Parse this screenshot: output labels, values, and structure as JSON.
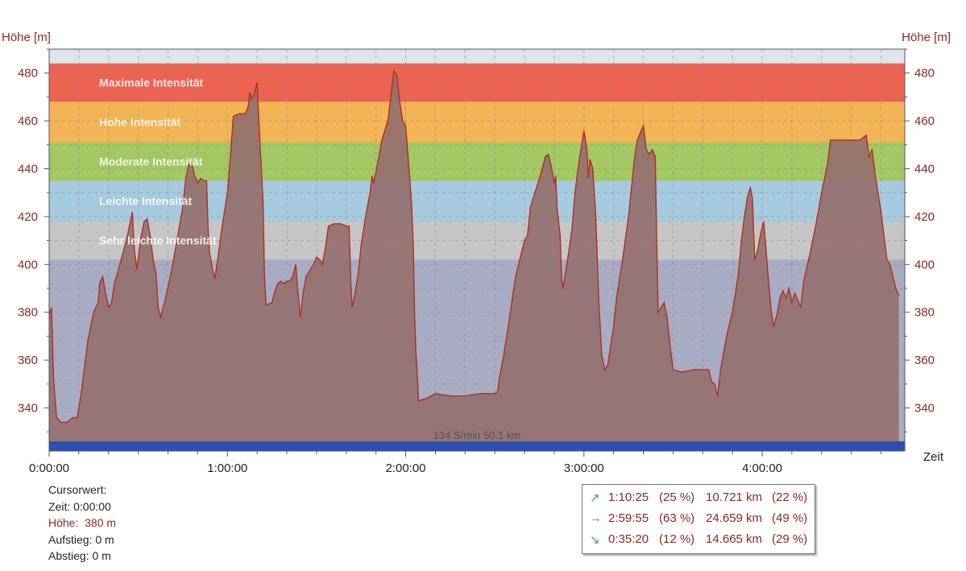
{
  "chart_data": {
    "type": "area",
    "ylabel_left": "Höhe [m]",
    "ylabel_right": "Höhe [m]",
    "xlabel": "Zeit",
    "ylim": [
      322,
      490
    ],
    "xlim_minutes": [
      0,
      288
    ],
    "y_ticks": [
      340,
      360,
      380,
      400,
      420,
      440,
      460,
      480
    ],
    "x_ticks": [
      {
        "minutes": 0,
        "label": "0:00:00"
      },
      {
        "minutes": 60,
        "label": "1:00:00"
      },
      {
        "minutes": 120,
        "label": "2:00:00"
      },
      {
        "minutes": 180,
        "label": "3:00:00"
      },
      {
        "minutes": 240,
        "label": "4:00:00"
      }
    ],
    "zones": [
      {
        "label": "Maximale Intensität",
        "y0": 468,
        "y1": 484,
        "color": "#ec6352"
      },
      {
        "label": "Hohe Intensität",
        "y0": 451,
        "y1": 468,
        "color": "#f2b455"
      },
      {
        "label": "Moderate Intensität",
        "y0": 435,
        "y1": 451,
        "color": "#a3c762"
      },
      {
        "label": "Leichte Intensität",
        "y0": 418,
        "y1": 435,
        "color": "#a5c9df"
      },
      {
        "label": "Sehr leichte Intensität",
        "y0": 402,
        "y1": 418,
        "color": "#c5c5c5"
      }
    ],
    "annotation": "134 S/min 50.1 km",
    "series": [
      {
        "fill": "#94706f",
        "line": "#b03020",
        "points": [
          [
            0,
            379
          ],
          [
            0.8,
            382
          ],
          [
            1.5,
            352
          ],
          [
            2.5,
            336
          ],
          [
            4,
            334
          ],
          [
            6,
            334
          ],
          [
            8,
            336
          ],
          [
            9.5,
            336
          ],
          [
            11,
            348
          ],
          [
            13,
            368
          ],
          [
            15,
            380
          ],
          [
            16.5,
            384
          ],
          [
            17,
            392
          ],
          [
            18,
            395
          ],
          [
            19,
            388
          ],
          [
            20,
            382
          ],
          [
            21,
            384
          ],
          [
            22,
            392
          ],
          [
            24,
            401
          ],
          [
            26,
            410
          ],
          [
            27,
            416
          ],
          [
            28,
            422
          ],
          [
            28.7,
            406
          ],
          [
            29.5,
            398
          ],
          [
            31,
            412
          ],
          [
            32,
            418
          ],
          [
            33,
            419
          ],
          [
            34,
            412
          ],
          [
            35,
            402
          ],
          [
            36,
            396
          ],
          [
            36.7,
            382
          ],
          [
            37.5,
            378
          ],
          [
            39,
            385
          ],
          [
            41,
            396
          ],
          [
            43,
            410
          ],
          [
            45,
            424
          ],
          [
            46,
            436
          ],
          [
            47,
            442
          ],
          [
            48,
            442
          ],
          [
            49,
            437
          ],
          [
            50,
            434
          ],
          [
            51,
            436
          ],
          [
            52,
            435
          ],
          [
            53,
            435
          ],
          [
            53.5,
            415
          ],
          [
            54,
            405
          ],
          [
            55,
            398
          ],
          [
            55.8,
            394
          ],
          [
            56.5,
            400
          ],
          [
            58,
            414
          ],
          [
            60,
            430
          ],
          [
            61,
            445
          ],
          [
            62,
            462
          ],
          [
            64,
            463
          ],
          [
            66,
            463
          ],
          [
            67,
            466
          ],
          [
            67.5,
            472
          ],
          [
            68,
            469
          ],
          [
            69,
            471
          ],
          [
            70,
            476
          ],
          [
            71,
            450
          ],
          [
            72,
            426
          ],
          [
            72.5,
            395
          ],
          [
            73,
            383
          ],
          [
            75,
            384
          ],
          [
            76,
            389
          ],
          [
            77,
            392
          ],
          [
            78,
            393
          ],
          [
            79,
            392
          ],
          [
            80,
            393
          ],
          [
            81,
            393
          ],
          [
            82,
            395
          ],
          [
            83,
            400
          ],
          [
            83.5,
            392
          ],
          [
            84.5,
            378
          ],
          [
            85.5,
            388
          ],
          [
            86.5,
            395
          ],
          [
            88,
            398
          ],
          [
            89,
            400
          ],
          [
            90,
            403
          ],
          [
            91,
            402
          ],
          [
            92,
            400
          ],
          [
            93,
            407
          ],
          [
            94,
            416
          ],
          [
            96,
            417
          ],
          [
            98,
            417
          ],
          [
            100,
            416
          ],
          [
            101,
            416
          ],
          [
            101.5,
            394
          ],
          [
            102,
            382
          ],
          [
            103,
            388
          ],
          [
            104,
            396
          ],
          [
            105,
            408
          ],
          [
            106.5,
            420
          ],
          [
            108,
            430
          ],
          [
            108.7,
            437
          ],
          [
            109.3,
            434
          ],
          [
            110.5,
            442
          ],
          [
            112,
            452
          ],
          [
            114,
            460
          ],
          [
            115,
            470
          ],
          [
            116,
            481
          ],
          [
            117,
            479
          ],
          [
            118,
            468
          ],
          [
            119,
            460
          ],
          [
            120,
            458
          ],
          [
            121,
            442
          ],
          [
            122,
            425
          ],
          [
            122.6,
            407
          ],
          [
            123,
            378
          ],
          [
            123.5,
            362
          ],
          [
            124,
            352
          ],
          [
            124.3,
            343
          ],
          [
            127,
            344
          ],
          [
            130,
            346
          ],
          [
            135,
            345
          ],
          [
            140,
            345
          ],
          [
            145,
            346
          ],
          [
            148,
            346
          ],
          [
            150,
            346
          ],
          [
            151,
            347
          ],
          [
            151.5,
            352
          ],
          [
            153,
            362
          ],
          [
            155,
            378
          ],
          [
            157,
            395
          ],
          [
            159,
            405
          ],
          [
            160,
            410
          ],
          [
            161,
            412
          ],
          [
            162,
            424
          ],
          [
            164,
            432
          ],
          [
            166,
            440
          ],
          [
            167,
            445
          ],
          [
            168,
            446
          ],
          [
            169,
            441
          ],
          [
            170,
            434
          ],
          [
            170.5,
            437
          ],
          [
            171,
            423
          ],
          [
            172,
            412
          ],
          [
            172.5,
            394
          ],
          [
            173,
            390
          ],
          [
            174,
            398
          ],
          [
            175,
            406
          ],
          [
            176,
            415
          ],
          [
            177,
            430
          ],
          [
            178,
            440
          ],
          [
            179,
            448
          ],
          [
            180,
            456
          ],
          [
            181,
            448
          ],
          [
            181.5,
            436
          ],
          [
            182,
            444
          ],
          [
            183,
            440
          ],
          [
            184,
            420
          ],
          [
            185,
            385
          ],
          [
            186,
            362
          ],
          [
            187,
            356
          ],
          [
            188,
            358
          ],
          [
            189,
            366
          ],
          [
            190,
            374
          ],
          [
            191,
            386
          ],
          [
            193,
            402
          ],
          [
            195,
            420
          ],
          [
            196,
            432
          ],
          [
            197,
            444
          ],
          [
            198,
            452
          ],
          [
            199,
            455
          ],
          [
            200,
            458
          ],
          [
            201,
            448
          ],
          [
            202,
            446
          ],
          [
            203,
            448
          ],
          [
            204,
            445
          ],
          [
            204.5,
            410
          ],
          [
            205,
            380
          ],
          [
            206,
            382
          ],
          [
            207,
            384
          ],
          [
            208,
            378
          ],
          [
            209,
            366
          ],
          [
            210,
            356
          ],
          [
            213,
            355
          ],
          [
            217,
            356
          ],
          [
            222,
            356
          ],
          [
            223,
            351
          ],
          [
            224,
            350
          ],
          [
            225,
            345
          ],
          [
            226,
            356
          ],
          [
            228,
            370
          ],
          [
            230,
            380
          ],
          [
            232,
            396
          ],
          [
            233,
            410
          ],
          [
            234,
            420
          ],
          [
            235,
            428
          ],
          [
            236,
            432
          ],
          [
            236.7,
            428
          ],
          [
            237.5,
            402
          ],
          [
            238.5,
            406
          ],
          [
            239.5,
            413
          ],
          [
            240.5,
            418
          ],
          [
            241,
            411
          ],
          [
            242,
            395
          ],
          [
            243,
            381
          ],
          [
            243.8,
            374
          ],
          [
            245,
            379
          ],
          [
            246,
            386
          ],
          [
            247,
            389
          ],
          [
            248,
            386
          ],
          [
            249,
            390
          ],
          [
            250,
            384
          ],
          [
            251,
            388
          ],
          [
            252,
            385
          ],
          [
            253,
            382
          ],
          [
            254,
            393
          ],
          [
            256,
            404
          ],
          [
            258,
            416
          ],
          [
            260,
            430
          ],
          [
            262,
            442
          ],
          [
            263,
            452
          ],
          [
            265,
            452
          ],
          [
            267,
            452
          ],
          [
            270,
            452
          ],
          [
            273,
            452
          ],
          [
            275,
            454
          ],
          [
            276,
            445
          ],
          [
            277,
            448
          ],
          [
            278,
            438
          ],
          [
            279,
            430
          ],
          [
            280,
            422
          ],
          [
            281,
            412
          ],
          [
            282,
            402
          ],
          [
            283,
            400
          ],
          [
            284,
            395
          ],
          [
            285,
            390
          ],
          [
            286,
            387
          ]
        ]
      }
    ]
  },
  "cursor": {
    "title": "Cursorwert:",
    "zeit_label": "Zeit:",
    "zeit_value": "0:00:00",
    "hoehe_label": "Höhe:",
    "hoehe_value": "380 m",
    "aufstieg_label": "Aufstieg:",
    "aufstieg_value": "0 m",
    "abstieg_label": "Abstieg:",
    "abstieg_value": "0 m"
  },
  "stats": [
    {
      "icon": "arrow-up-right-icon",
      "glyph": "↗",
      "time": "1:10:25",
      "time_pct": "(25 %)",
      "dist": "10.721 km",
      "dist_pct": "(22 %)"
    },
    {
      "icon": "arrow-right-icon",
      "glyph": "→",
      "time": "2:59:55",
      "time_pct": "(63 %)",
      "dist": "24.659 km",
      "dist_pct": "(49 %)"
    },
    {
      "icon": "arrow-down-right-icon",
      "glyph": "↘",
      "time": "0:35:20",
      "time_pct": "(12 %)",
      "dist": "14.665 km",
      "dist_pct": "(29 %)"
    }
  ]
}
